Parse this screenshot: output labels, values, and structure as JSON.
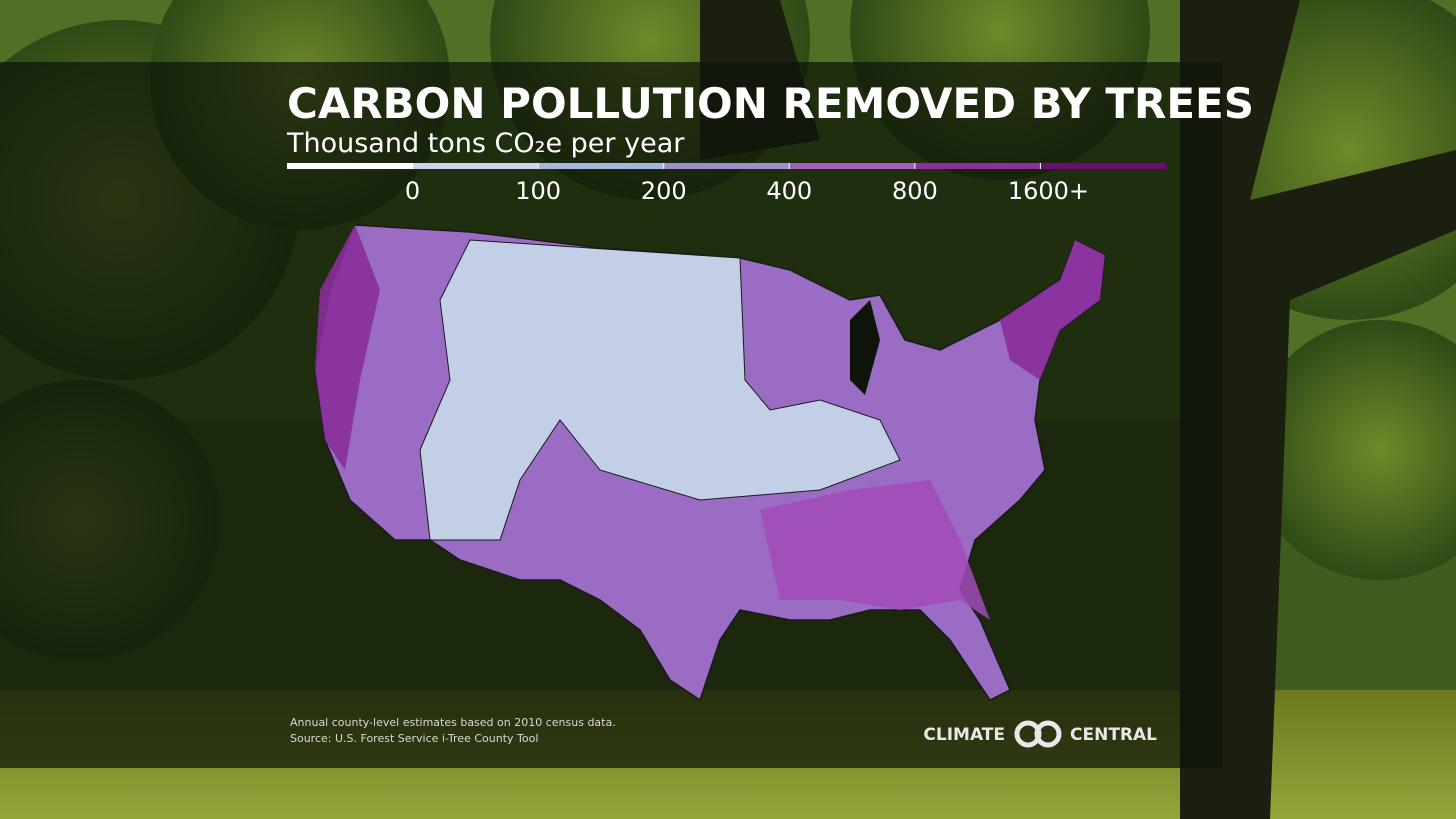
{
  "header": {
    "title": "CARBON POLLUTION REMOVED BY TREES",
    "subtitle": "Thousand tons CO₂e per year"
  },
  "legend": {
    "colors": [
      "#ffffff",
      "#c9d6ea",
      "#a9b6dc",
      "#9d8fce",
      "#a05fba",
      "#8e2f9e",
      "#6a0f70"
    ],
    "ticks": [
      0,
      100,
      200,
      400,
      800,
      {
        "value": 1600,
        "label": "1600+"
      }
    ]
  },
  "footer": {
    "notes": [
      "Annual county-level estimates based on 2010 census data.",
      "Source: U.S. Forest Service i-Tree County Tool"
    ],
    "logo_left": "CLIMATE",
    "logo_right": "CENTRAL"
  }
}
